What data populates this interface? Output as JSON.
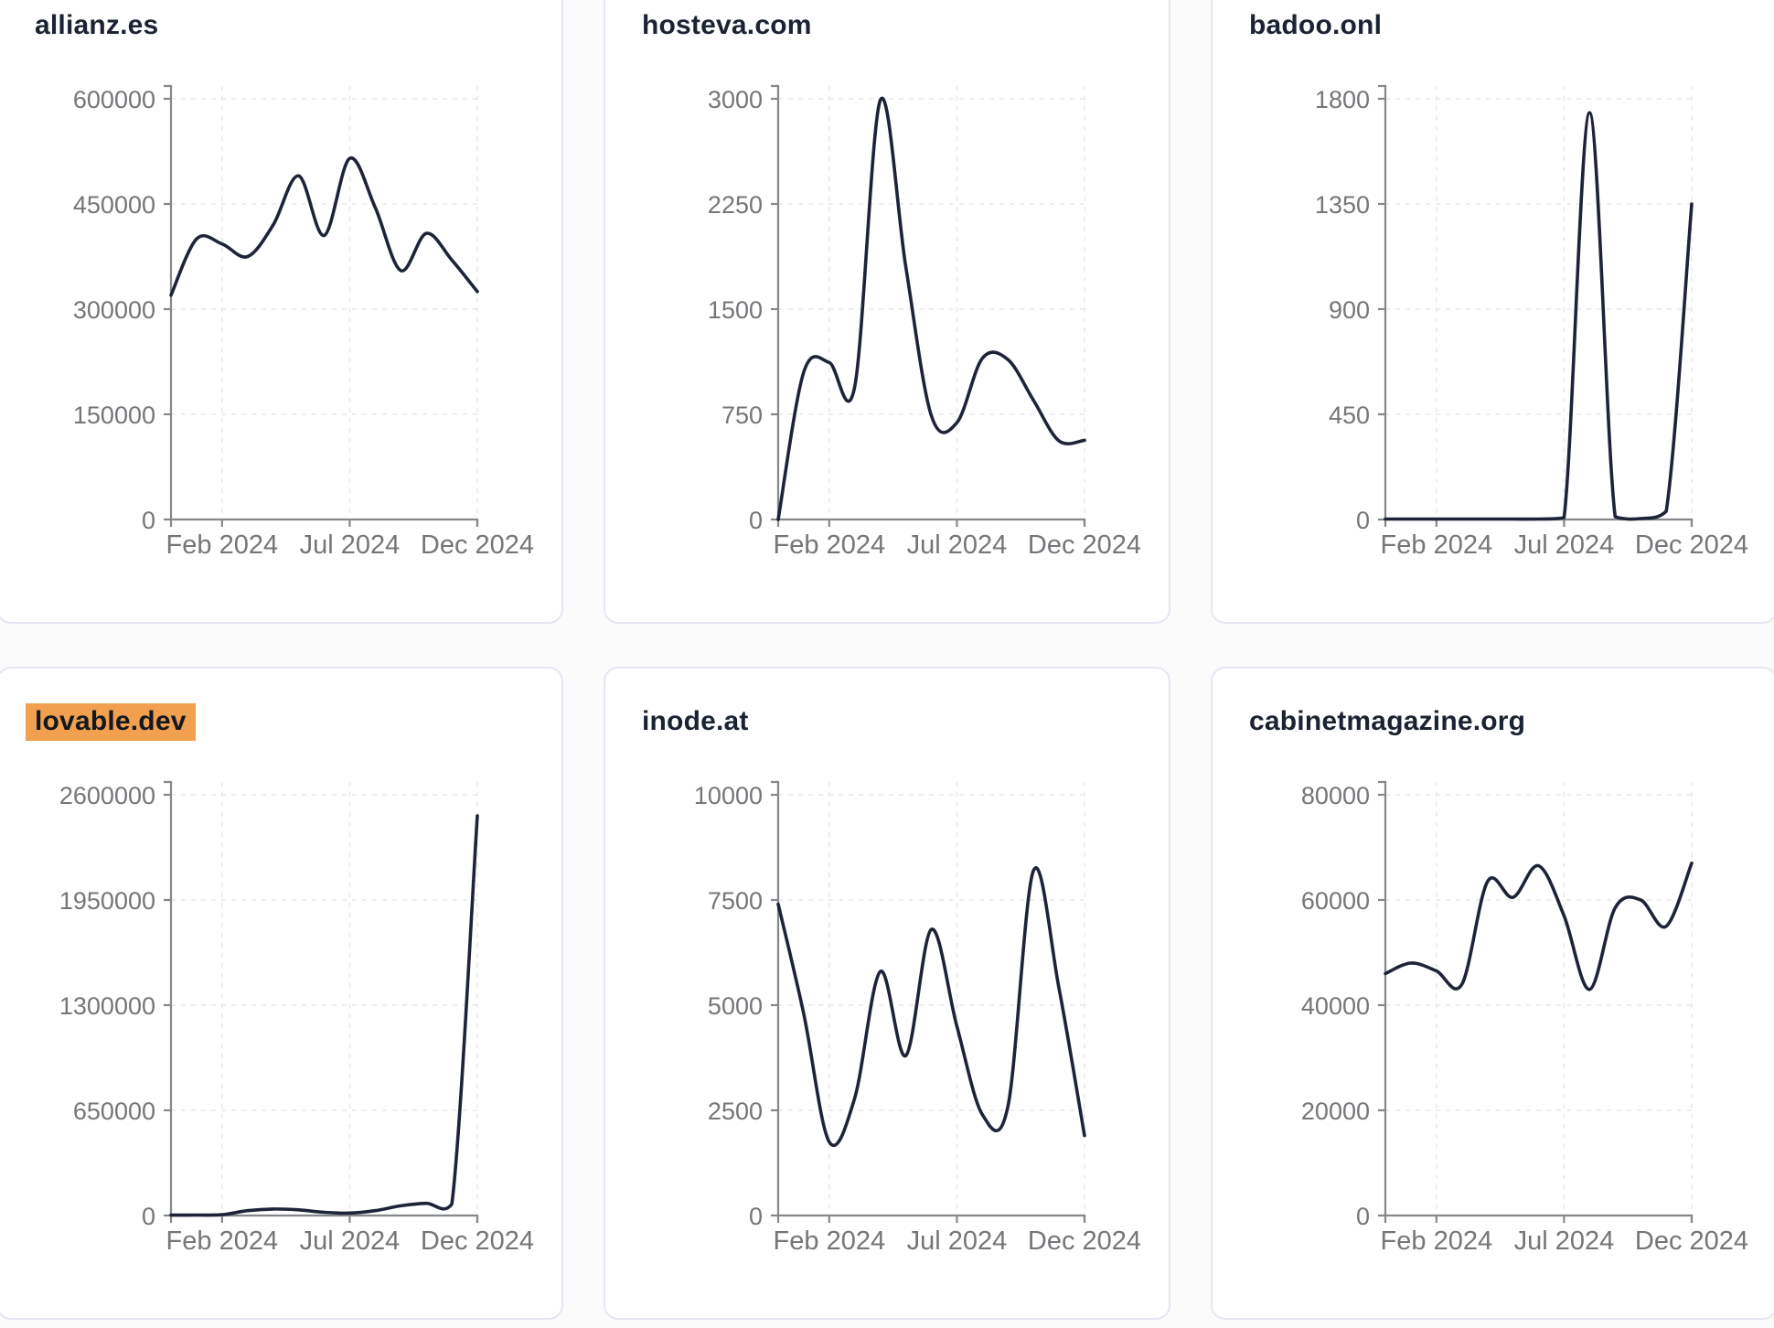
{
  "page": {
    "background_color": "#fbfbfc",
    "card_background": "#ffffff",
    "card_border_color": "#e4e7f2",
    "title_color": "#1b2333",
    "line_color": "#1d2438",
    "axis_color": "#85878a",
    "tick_label_color": "#747679",
    "grid_color": "#e9e9eb",
    "highlight_color": "#f0a04e"
  },
  "x_axis_tick_labels": [
    "Feb 2024",
    "Jul 2024",
    "Dec 2024"
  ],
  "chart_data": [
    {
      "type": "line",
      "title": "allianz.es",
      "highlighted": false,
      "x": [
        "Dec 2023",
        "Jan 2024",
        "Feb 2024",
        "Mar 2024",
        "Apr 2024",
        "May 2024",
        "Jun 2024",
        "Jul 2024",
        "Aug 2024",
        "Sep 2024",
        "Oct 2024",
        "Nov 2024",
        "Dec 2024"
      ],
      "values": [
        320000,
        400000,
        393000,
        375000,
        420000,
        490000,
        405000,
        515000,
        445000,
        355000,
        408000,
        370000,
        325000
      ],
      "ylim": [
        0,
        600000
      ],
      "y_ticks": [
        "600000",
        "450000",
        "300000",
        "150000",
        "0"
      ],
      "x_ticks": [
        "Feb 2024",
        "Jul 2024",
        "Dec 2024"
      ],
      "grid": true,
      "legend": "none"
    },
    {
      "type": "line",
      "title": "hosteva.com",
      "highlighted": false,
      "x": [
        "Dec 2023",
        "Jan 2024",
        "Feb 2024",
        "Mar 2024",
        "Apr 2024",
        "May 2024",
        "Jun 2024",
        "Jul 2024",
        "Aug 2024",
        "Sep 2024",
        "Oct 2024",
        "Nov 2024",
        "Dec 2024"
      ],
      "values": [
        0,
        1050,
        1120,
        950,
        2990,
        1800,
        740,
        690,
        1150,
        1140,
        850,
        560,
        565
      ],
      "ylim": [
        0,
        3000
      ],
      "y_ticks": [
        "3000",
        "2250",
        "1500",
        "750",
        "0"
      ],
      "x_ticks": [
        "Feb 2024",
        "Jul 2024",
        "Dec 2024"
      ],
      "grid": true,
      "legend": "none"
    },
    {
      "type": "line",
      "title": "badoo.onl",
      "highlighted": false,
      "x": [
        "Dec 2023",
        "Jan 2024",
        "Feb 2024",
        "Mar 2024",
        "Apr 2024",
        "May 2024",
        "Jun 2024",
        "Jul 2024",
        "Aug 2024",
        "Sep 2024",
        "Oct 2024",
        "Nov 2024",
        "Dec 2024"
      ],
      "values": [
        2,
        2,
        2,
        2,
        2,
        2,
        2,
        8,
        1740,
        12,
        4,
        35,
        1350
      ],
      "ylim": [
        0,
        1800
      ],
      "y_ticks": [
        "1800",
        "1350",
        "900",
        "450",
        "0"
      ],
      "x_ticks": [
        "Feb 2024",
        "Jul 2024",
        "Dec 2024"
      ],
      "grid": true,
      "legend": "none"
    },
    {
      "type": "line",
      "title": "lovable.dev",
      "highlighted": true,
      "x": [
        "Dec 2023",
        "Jan 2024",
        "Feb 2024",
        "Mar 2024",
        "Apr 2024",
        "May 2024",
        "Jun 2024",
        "Jul 2024",
        "Aug 2024",
        "Sep 2024",
        "Oct 2024",
        "Nov 2024",
        "Dec 2024"
      ],
      "values": [
        2000,
        3000,
        5000,
        30000,
        40000,
        35000,
        20000,
        15000,
        30000,
        60000,
        75000,
        70000,
        2470000
      ],
      "ylim": [
        0,
        2600000
      ],
      "y_ticks": [
        "2600000",
        "1950000",
        "1300000",
        "650000",
        "0"
      ],
      "x_ticks": [
        "Feb 2024",
        "Jul 2024",
        "Dec 2024"
      ],
      "grid": true,
      "legend": "none"
    },
    {
      "type": "line",
      "title": "inode.at",
      "highlighted": false,
      "x": [
        "Dec 2023",
        "Jan 2024",
        "Feb 2024",
        "Mar 2024",
        "Apr 2024",
        "May 2024",
        "Jun 2024",
        "Jul 2024",
        "Aug 2024",
        "Sep 2024",
        "Oct 2024",
        "Nov 2024",
        "Dec 2024"
      ],
      "values": [
        7400,
        4800,
        1750,
        2800,
        5800,
        3800,
        6800,
        4500,
        2400,
        2600,
        8200,
        5400,
        1900
      ],
      "ylim": [
        0,
        10000
      ],
      "y_ticks": [
        "10000",
        "7500",
        "5000",
        "2500",
        "0"
      ],
      "x_ticks": [
        "Feb 2024",
        "Jul 2024",
        "Dec 2024"
      ],
      "grid": true,
      "legend": "none"
    },
    {
      "type": "line",
      "title": "cabinetmagazine.org",
      "highlighted": false,
      "x": [
        "Dec 2023",
        "Jan 2024",
        "Feb 2024",
        "Mar 2024",
        "Apr 2024",
        "May 2024",
        "Jun 2024",
        "Jul 2024",
        "Aug 2024",
        "Sep 2024",
        "Oct 2024",
        "Nov 2024",
        "Dec 2024"
      ],
      "values": [
        46000,
        48000,
        46500,
        44000,
        63500,
        60500,
        66500,
        57000,
        43000,
        58500,
        60000,
        55000,
        67000
      ],
      "ylim": [
        0,
        80000
      ],
      "y_ticks": [
        "80000",
        "60000",
        "40000",
        "20000",
        "0"
      ],
      "x_ticks": [
        "Feb 2024",
        "Jul 2024",
        "Dec 2024"
      ],
      "grid": true,
      "legend": "none"
    }
  ]
}
